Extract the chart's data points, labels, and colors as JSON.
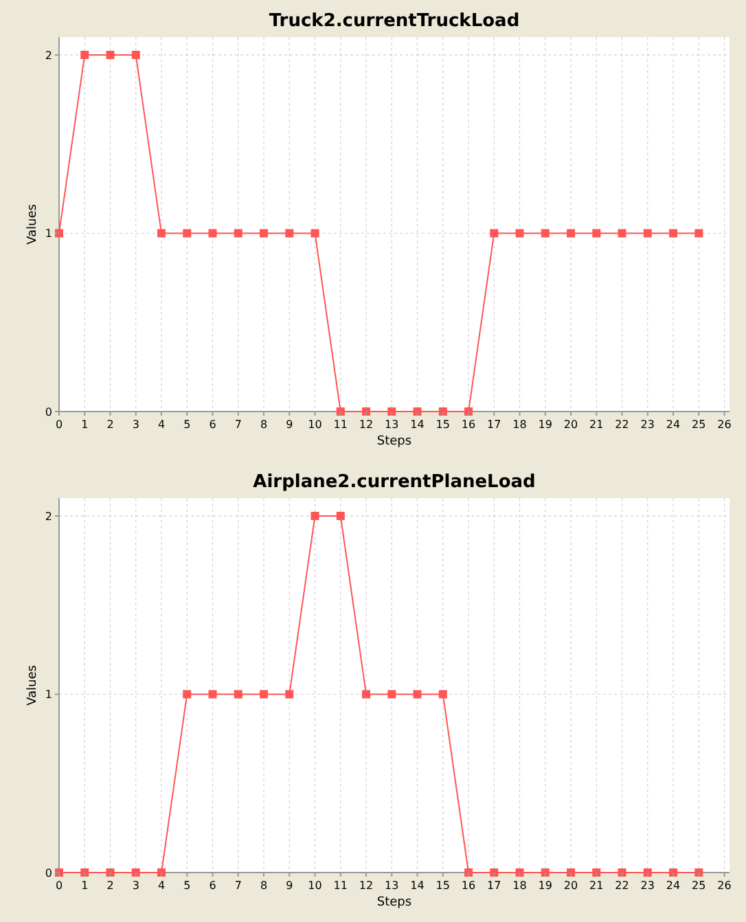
{
  "chart_data": [
    {
      "type": "line",
      "title": "Truck2.currentTruckLoad",
      "xlabel": "Steps",
      "ylabel": "Values",
      "x": [
        0,
        1,
        2,
        3,
        4,
        5,
        6,
        7,
        8,
        9,
        10,
        11,
        12,
        13,
        14,
        15,
        16,
        17,
        18,
        19,
        20,
        21,
        22,
        23,
        24,
        25
      ],
      "series": [
        {
          "color": "#ff5555",
          "values": [
            1,
            2,
            2,
            2,
            1,
            1,
            1,
            1,
            1,
            1,
            1,
            0,
            0,
            0,
            0,
            0,
            0,
            1,
            1,
            1,
            1,
            1,
            1,
            1,
            1,
            1
          ]
        }
      ],
      "xlim": [
        0,
        26.2
      ],
      "xticks": [
        0,
        1,
        2,
        3,
        4,
        5,
        6,
        7,
        8,
        9,
        10,
        11,
        12,
        13,
        14,
        15,
        16,
        17,
        18,
        19,
        20,
        21,
        22,
        23,
        24,
        25,
        26
      ],
      "ylim": [
        0,
        2.1
      ],
      "yticks": [
        0,
        1,
        2
      ],
      "grid": true,
      "marker": "square",
      "line_style": "solid"
    },
    {
      "type": "line",
      "title": "Airplane2.currentPlaneLoad",
      "xlabel": "Steps",
      "ylabel": "Values",
      "x": [
        0,
        1,
        2,
        3,
        4,
        5,
        6,
        7,
        8,
        9,
        10,
        11,
        12,
        13,
        14,
        15,
        16,
        17,
        18,
        19,
        20,
        21,
        22,
        23,
        24,
        25
      ],
      "series": [
        {
          "color": "#ff5555",
          "values": [
            0,
            0,
            0,
            0,
            0,
            1,
            1,
            1,
            1,
            1,
            2,
            2,
            1,
            1,
            1,
            1,
            0,
            0,
            0,
            0,
            0,
            0,
            0,
            0,
            0,
            0
          ]
        }
      ],
      "xlim": [
        0,
        26.2
      ],
      "xticks": [
        0,
        1,
        2,
        3,
        4,
        5,
        6,
        7,
        8,
        9,
        10,
        11,
        12,
        13,
        14,
        15,
        16,
        17,
        18,
        19,
        20,
        21,
        22,
        23,
        24,
        25,
        26
      ],
      "ylim": [
        0,
        2.1
      ],
      "yticks": [
        0,
        1,
        2
      ],
      "grid": true,
      "marker": "square",
      "line_style": "solid"
    }
  ]
}
